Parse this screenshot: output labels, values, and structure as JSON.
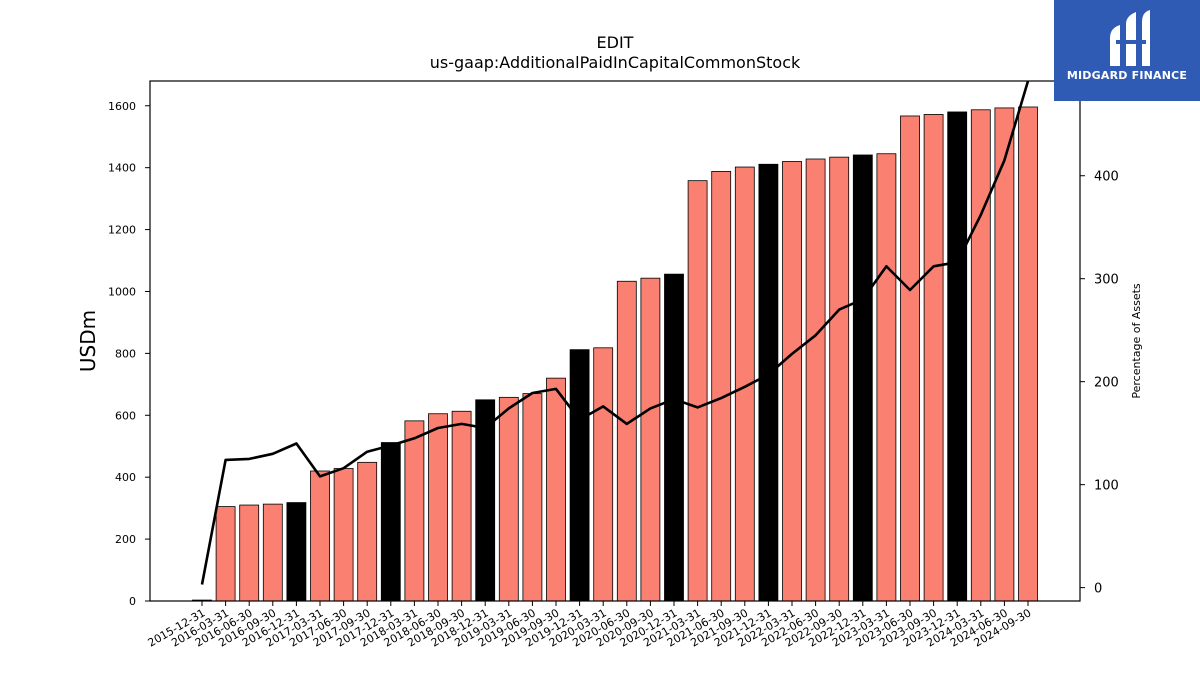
{
  "brand": {
    "name": "MIDGARD FINANCE",
    "background": "#2f5bb5"
  },
  "chart_data": {
    "type": "bar",
    "title": "EDIT",
    "subtitle": "us-gaap:AdditionalPaidInCapitalCommonStock",
    "ylabel": "USDm",
    "y2label": "Percentage of Assets",
    "ylim": [
      0,
      1680
    ],
    "y2lim": [
      -13,
      492
    ],
    "yticks": [
      0,
      200,
      400,
      600,
      800,
      1000,
      1200,
      1400,
      1600
    ],
    "y2ticks": [
      0,
      100,
      200,
      300,
      400
    ],
    "colors": {
      "quarter_bar": "#fa8072",
      "year_end_bar": "#000000",
      "line": "#000000"
    },
    "categories": [
      "2015-12-31",
      "2016-03-31",
      "2016-06-30",
      "2016-09-30",
      "2016-12-31",
      "2017-03-31",
      "2017-06-30",
      "2017-09-30",
      "2017-12-31",
      "2018-03-31",
      "2018-06-30",
      "2018-09-30",
      "2018-12-31",
      "2019-03-31",
      "2019-06-30",
      "2019-09-30",
      "2019-12-31",
      "2020-03-31",
      "2020-06-30",
      "2020-09-30",
      "2020-12-31",
      "2021-03-31",
      "2021-06-30",
      "2021-09-30",
      "2021-12-31",
      "2022-03-31",
      "2022-06-30",
      "2022-09-30",
      "2022-12-31",
      "2023-03-31",
      "2023-06-30",
      "2023-09-30",
      "2023-12-31",
      "2024-03-31",
      "2024-06-30",
      "2024-09-30"
    ],
    "series": [
      {
        "type": "bar",
        "axis": "left",
        "values": [
          3,
          305,
          310,
          313,
          318,
          420,
          428,
          448,
          512,
          582,
          605,
          613,
          650,
          658,
          670,
          720,
          812,
          818,
          1033,
          1043,
          1056,
          1358,
          1388,
          1402,
          1411,
          1420,
          1428,
          1434,
          1441,
          1445,
          1567,
          1572,
          1580,
          1587,
          1593,
          1596
        ]
      },
      {
        "type": "line",
        "axis": "right",
        "values": [
          3,
          124,
          125,
          130,
          140,
          108,
          116,
          132,
          138,
          145,
          155,
          159,
          155,
          174,
          189,
          193,
          163,
          176,
          159,
          174,
          183,
          175,
          184,
          195,
          207,
          227,
          245,
          270,
          280,
          312,
          289,
          312,
          316,
          362,
          415,
          492
        ]
      }
    ],
    "legend": "none",
    "grid": false
  }
}
